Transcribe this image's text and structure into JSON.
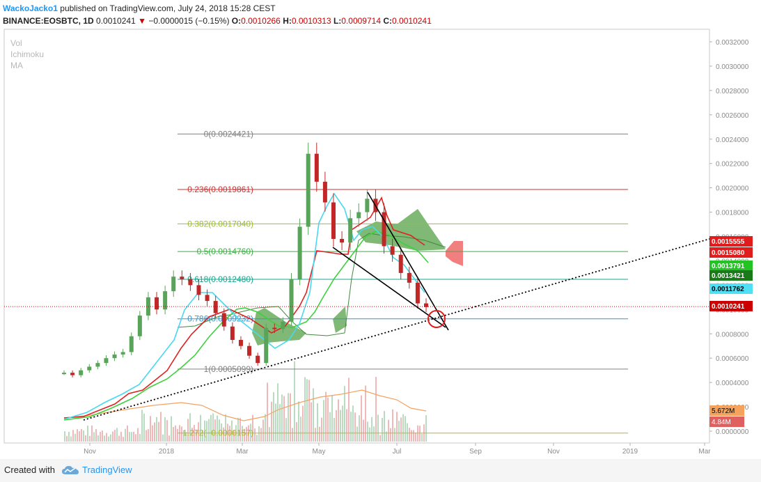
{
  "header": {
    "publisher": "WackoJacko1",
    "published_text": "published on TradingView.com, July 24, 2018 15:28 CEST",
    "symbol": "BINANCE:EOSBTC, 1D",
    "last": "0.0010241",
    "change": "−0.0000015 (−0.15%)",
    "open_label": "O:",
    "open": "0.0010266",
    "high_label": "H:",
    "high": "0.0010313",
    "low_label": "L:",
    "low": "0.0009714",
    "close_label": "C:",
    "close": "0.0010241"
  },
  "indicators": [
    "Vol",
    "Ichimoku",
    "MA"
  ],
  "footer": {
    "created_with": "Created with",
    "brand": "TradingView"
  },
  "chart_data": {
    "type": "line",
    "ylim": [
      -2e-05,
      0.00033
    ],
    "y_ticks": [
      "0.0032000",
      "0.0030000",
      "0.0028000",
      "0.0026000",
      "0.0024000",
      "0.0022000",
      "0.0020000",
      "0.0018000",
      "0.0016000",
      "0.0014000",
      "0.0012000",
      "0.0010000",
      "0.0008000",
      "0.0006000",
      "0.0004000",
      "0.0002000",
      "0.0000000"
    ],
    "x_ticks": [
      "Nov",
      "2018",
      "Mar",
      "May",
      "Jul",
      "Sep",
      "Nov",
      "2019",
      "Mar"
    ],
    "fib_levels": [
      {
        "label": "0(0.0024421)",
        "value": 0.0024421,
        "color": "#808080"
      },
      {
        "label": "0.236(0.0019861)",
        "value": 0.0019861,
        "color": "#cc3333"
      },
      {
        "label": "0.382(0.0017040)",
        "value": 0.001704,
        "color": "#9abf2e"
      },
      {
        "label": "0.5(0.0014760)",
        "value": 0.001476,
        "color": "#3cb043"
      },
      {
        "label": "0.618(0.0012480)",
        "value": 0.001248,
        "color": "#1aa58c"
      },
      {
        "label": "0.786(0.0009232)",
        "value": 0.0009232,
        "color": "#3a93c7"
      },
      {
        "label": "1(0.0005099)",
        "value": 0.0005099,
        "color": "#808080"
      },
      {
        "label": "1.272(−0.0000157)",
        "value": -1.57e-05,
        "color": "#b5b531"
      }
    ],
    "price_badges": [
      {
        "label": "0.0015555",
        "bg": "#e01c1c",
        "fg": "#ffffff"
      },
      {
        "label": "0.0015080",
        "bg": "#e01c1c",
        "fg": "#ffffff"
      },
      {
        "label": "0.0013791",
        "bg": "#22c322",
        "fg": "#ffffff"
      },
      {
        "label": "0.0013421",
        "bg": "#1a7a1a",
        "fg": "#ffffff"
      },
      {
        "label": "0.0011762",
        "bg": "#4fe0f5",
        "fg": "#000000"
      },
      {
        "label": "0.0010241",
        "bg": "#cc0000",
        "fg": "#ffffff"
      }
    ],
    "volume_badges": [
      {
        "label": "5.672M",
        "bg": "#f5a25d",
        "fg": "#000000"
      },
      {
        "label": "4.84M",
        "bg": "#e06060",
        "fg": "#ffffff"
      }
    ],
    "last_price": 0.0010241,
    "price": [
      0.00048,
      0.00046,
      0.0005,
      0.00053,
      0.00056,
      0.0006,
      0.00063,
      0.00065,
      0.00078,
      0.00095,
      0.0011,
      0.001,
      0.00115,
      0.00127,
      0.00125,
      0.0012,
      0.00112,
      0.00107,
      0.00097,
      0.00086,
      0.00075,
      0.0007,
      0.00062,
      0.00056,
      0.00085,
      0.00084,
      0.0009,
      0.00125,
      0.00168,
      0.00228,
      0.00205,
      0.00188,
      0.00158,
      0.00155,
      0.00175,
      0.0018,
      0.00191,
      0.0018,
      0.00152,
      0.00145,
      0.0013,
      0.00122,
      0.00105,
      0.00102
    ],
    "colors": {
      "up": "#5aa35a",
      "down": "#c22727",
      "tenkan": "#48d8f0",
      "kijun": "#e02020",
      "ma": "#3dd13d",
      "lagging": "#3f8a3f",
      "cloud_bull": "#4a9a3a",
      "cloud_bear": "#f07878",
      "volume_ma": "#f4a261"
    }
  }
}
